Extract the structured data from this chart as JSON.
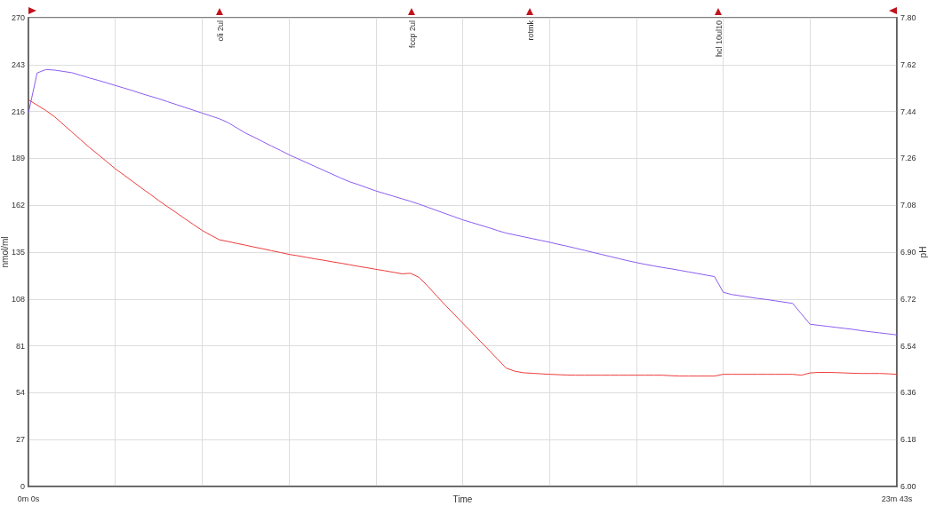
{
  "chart_data": {
    "type": "line",
    "xlabel": "Time",
    "ylabel": "nmol/ml",
    "y2label": "pH",
    "categories": [
      "0m 0s",
      null,
      null,
      null,
      null,
      null,
      null,
      null,
      null,
      null,
      null,
      null,
      null,
      null,
      null,
      null,
      null,
      null,
      null,
      null,
      null,
      null,
      null,
      null,
      null,
      null,
      null,
      null,
      null,
      null,
      null,
      null,
      null,
      null,
      null,
      null,
      null,
      null,
      null,
      null,
      null,
      null,
      null,
      null,
      null,
      null,
      null,
      null,
      null,
      null,
      null,
      null,
      null,
      null,
      null,
      null,
      null,
      null,
      null,
      null,
      null,
      null,
      null,
      null,
      null,
      null,
      null,
      null,
      null,
      null,
      null,
      null,
      null,
      null,
      null,
      null,
      null,
      null,
      null,
      null,
      null,
      null,
      null,
      null,
      null,
      null,
      null,
      null,
      null,
      null,
      null,
      null,
      null,
      null,
      null,
      null,
      null,
      null,
      null,
      null,
      "23m 43s"
    ],
    "ylim": [
      0,
      270
    ],
    "yticks": [
      0,
      27,
      54,
      81,
      108,
      135,
      162,
      189,
      216,
      243,
      270
    ],
    "y2lim": [
      6,
      7.8
    ],
    "y2ticks": [
      {
        "value": 6,
        "label": "6.00"
      },
      6.18,
      6.36,
      6.54,
      6.72,
      {
        "value": 6.9,
        "label": "6.90"
      },
      7.08,
      7.26,
      7.44,
      7.62,
      {
        "value": 7.8,
        "label": "7.80"
      }
    ],
    "grid": true,
    "marker": "none",
    "line_style": "solid",
    "series": [
      {
        "color": "#ee3b3b",
        "values": [
          222.8,
          219.7,
          216.6,
          213.0,
          208.6,
          204.2,
          199.8,
          195.4,
          191.3,
          187.2,
          183.0,
          179.4,
          175.7,
          172.0,
          168.4,
          164.7,
          161.2,
          157.8,
          154.3,
          150.9,
          147.5,
          144.7,
          142.1,
          141.1,
          140.0,
          139.0,
          137.9,
          136.9,
          135.8,
          134.8,
          133.7,
          132.9,
          132.0,
          131.1,
          130.3,
          129.4,
          128.6,
          127.7,
          126.8,
          126.0,
          125.1,
          124.3,
          123.4,
          122.5,
          122.8,
          120.4,
          115.3,
          109.8,
          104.4,
          99.3,
          94.1,
          89.0,
          83.8,
          78.7,
          73.4,
          68.2,
          66.4,
          65.5,
          65.2,
          64.9,
          64.6,
          64.4,
          64.2,
          64.1,
          64.1,
          64.1,
          64.1,
          64.1,
          64.1,
          64.1,
          64.1,
          64.1,
          64.1,
          64.1,
          63.8,
          63.6,
          63.6,
          63.6,
          63.6,
          63.6,
          64.6,
          64.6,
          64.6,
          64.6,
          64.6,
          64.6,
          64.6,
          64.6,
          64.6,
          64.1,
          65.4,
          65.7,
          65.7,
          65.6,
          65.4,
          65.2,
          65.1,
          65.1,
          65.1,
          64.9,
          64.6
        ]
      },
      {
        "color": "#8a5cf0",
        "axis": "y2",
        "values": [
          7.434,
          7.588,
          7.601,
          7.599,
          7.594,
          7.589,
          7.579,
          7.569,
          7.56,
          7.55,
          7.54,
          7.53,
          7.52,
          7.509,
          7.499,
          7.489,
          7.478,
          7.467,
          7.456,
          7.445,
          7.434,
          7.423,
          7.412,
          7.397,
          7.377,
          7.357,
          7.341,
          7.324,
          7.307,
          7.291,
          7.274,
          7.259,
          7.244,
          7.229,
          7.214,
          7.199,
          7.184,
          7.17,
          7.159,
          7.147,
          7.135,
          7.125,
          7.115,
          7.105,
          7.095,
          7.084,
          7.072,
          7.06,
          7.048,
          7.036,
          7.024,
          7.014,
          7.004,
          6.994,
          6.983,
          6.973,
          6.966,
          6.959,
          6.952,
          6.945,
          6.938,
          6.93,
          6.923,
          6.915,
          6.907,
          6.899,
          6.891,
          6.883,
          6.875,
          6.867,
          6.86,
          6.853,
          6.847,
          6.841,
          6.836,
          6.83,
          6.824,
          6.818,
          6.812,
          6.806,
          6.746,
          6.737,
          6.732,
          6.727,
          6.722,
          6.718,
          6.713,
          6.708,
          6.703,
          6.663,
          6.623,
          6.619,
          6.615,
          6.611,
          6.607,
          6.603,
          6.598,
          6.594,
          6.59,
          6.586,
          6.582
        ]
      }
    ],
    "annotations": [
      "oli 2ul",
      "fccp 2ul",
      "rotmk",
      "hcl 10ul10"
    ]
  }
}
